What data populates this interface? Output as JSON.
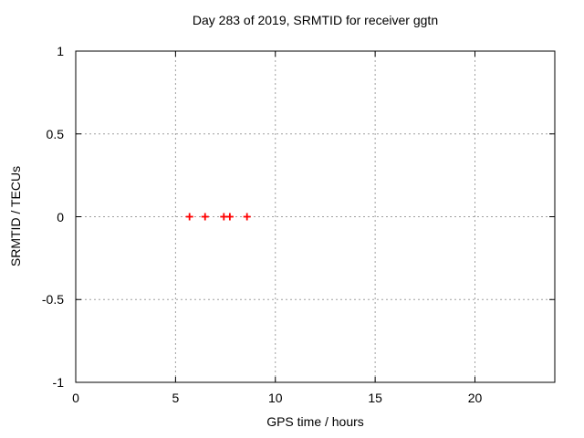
{
  "colors": {
    "background": "#ffffff",
    "axis": "#000000",
    "grid": "#a0a0a0",
    "marker": "#ff0000",
    "text": "#000000"
  },
  "chart_data": {
    "type": "scatter",
    "title": "Day 283 of 2019, SRMTID for receiver ggtn",
    "xlabel": "GPS time / hours",
    "ylabel": "SRMTID / TECUs",
    "xlim": [
      0,
      24
    ],
    "ylim": [
      -1,
      1
    ],
    "x_ticks": [
      0,
      5,
      10,
      15,
      20
    ],
    "y_ticks": [
      -1,
      -0.5,
      0,
      0.5,
      1
    ],
    "grid": true,
    "grid_style": "dashed",
    "legend": "none",
    "series": [
      {
        "name": "SRMTID",
        "marker": "plus",
        "color": "#ff0000",
        "points": [
          [
            5.7,
            0
          ],
          [
            6.48,
            0
          ],
          [
            7.42,
            0
          ],
          [
            7.72,
            0
          ],
          [
            8.58,
            0
          ]
        ]
      }
    ]
  }
}
